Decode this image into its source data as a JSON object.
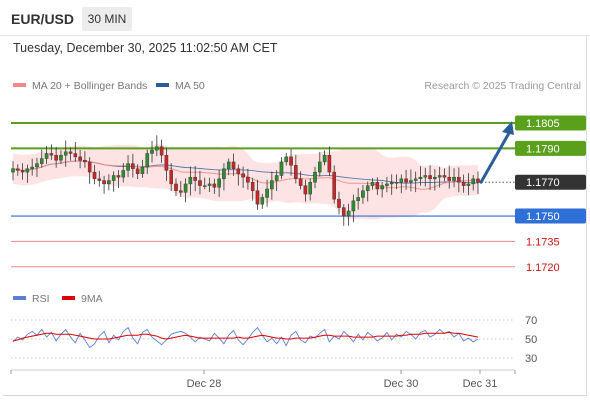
{
  "header": {
    "symbol": "EUR/USD",
    "timeframe": "30 MIN",
    "datetime": "Tuesday, December 30, 2025 11:02:50 AM CET",
    "copyright": "Research © 2025 Trading Central"
  },
  "legend": {
    "ma20_label": "MA 20 + Bollinger Bands",
    "ma20_color": "#f28a8a",
    "ma50_label": "MA 50",
    "ma50_color": "#2c5d9b"
  },
  "rsi_legend": {
    "rsi_label": "RSI",
    "rsi_color": "#5b7fd6",
    "ma9_label": "9MA",
    "ma9_color": "#e00000"
  },
  "chart_data": [
    {
      "type": "candlestick",
      "ylim": [
        1.1711,
        1.1821
      ],
      "x_labels": [
        "Dec 28",
        "Dec 30",
        "Dec 31"
      ],
      "levels": [
        {
          "value": 1.1805,
          "label": "1.1805",
          "kind": "resistance",
          "color": "#5aa01c"
        },
        {
          "value": 1.179,
          "label": "1.1790",
          "kind": "resistance",
          "color": "#5aa01c"
        },
        {
          "value": 1.177,
          "label": "1.1770",
          "kind": "current",
          "color": "#333333"
        },
        {
          "value": 1.175,
          "label": "1.1750",
          "kind": "support",
          "color": "#2f6fd8"
        },
        {
          "value": 1.1735,
          "label": "1.1735",
          "kind": "support",
          "color": "#f08888"
        },
        {
          "value": 1.172,
          "label": "1.1720",
          "kind": "support",
          "color": "#f08888"
        }
      ],
      "closes": [
        1.1778,
        1.1777,
        1.1776,
        1.1778,
        1.1779,
        1.1781,
        1.1784,
        1.1787,
        1.1786,
        1.1783,
        1.1786,
        1.1788,
        1.1787,
        1.1785,
        1.1783,
        1.1782,
        1.1776,
        1.1772,
        1.1771,
        1.1769,
        1.1771,
        1.1774,
        1.1773,
        1.1777,
        1.1781,
        1.1778,
        1.1775,
        1.1779,
        1.1787,
        1.1789,
        1.1791,
        1.1786,
        1.1777,
        1.1769,
        1.1765,
        1.1764,
        1.1769,
        1.1773,
        1.1771,
        1.1768,
        1.1768,
        1.1769,
        1.1767,
        1.1772,
        1.1778,
        1.1782,
        1.1778,
        1.1775,
        1.1773,
        1.177,
        1.1765,
        1.1757,
        1.1761,
        1.1766,
        1.1771,
        1.1774,
        1.1782,
        1.1785,
        1.178,
        1.1772,
        1.1768,
        1.1763,
        1.177,
        1.1776,
        1.1782,
        1.1786,
        1.1776,
        1.176,
        1.1755,
        1.175,
        1.1753,
        1.1759,
        1.1761,
        1.1765,
        1.1768,
        1.177,
        1.1766,
        1.1768,
        1.1769,
        1.177,
        1.177,
        1.1772,
        1.177,
        1.1771,
        1.1772,
        1.1773,
        1.1774,
        1.1772,
        1.1773,
        1.1774,
        1.1773,
        1.1771,
        1.1773,
        1.177,
        1.1768,
        1.1769,
        1.1772,
        1.177
      ],
      "forecast": {
        "from": 1.177,
        "to": 1.1805
      }
    },
    {
      "type": "line",
      "title": "RSI",
      "ylim": [
        20,
        80
      ],
      "y_ticks": [
        70,
        50,
        30
      ],
      "series": [
        {
          "name": "RSI",
          "values": [
            47,
            52,
            49,
            55,
            58,
            54,
            60,
            52,
            57,
            48,
            55,
            60,
            52,
            46,
            56,
            49,
            41,
            45,
            53,
            58,
            46,
            54,
            49,
            58,
            62,
            51,
            45,
            57,
            60,
            52,
            48,
            44,
            49,
            55,
            57,
            58,
            56,
            52,
            47,
            52,
            50,
            48,
            56,
            51,
            45,
            54,
            59,
            49,
            44,
            50,
            57,
            62,
            54,
            47,
            51,
            45,
            52,
            43,
            54,
            58,
            49,
            46,
            53,
            51,
            56,
            60,
            47,
            53,
            50,
            58,
            53,
            47,
            55,
            49,
            57,
            53,
            48,
            51,
            57,
            49,
            55,
            52,
            58,
            55,
            50,
            57,
            59,
            52,
            55,
            60,
            56,
            58,
            52,
            56,
            48,
            51,
            47,
            50
          ]
        },
        {
          "name": "9MA",
          "values": [
            48,
            49,
            51,
            52,
            53,
            54,
            55,
            56,
            56,
            55,
            55,
            55,
            55,
            54,
            53,
            52,
            51,
            50,
            50,
            50,
            50,
            51,
            52,
            53,
            54,
            54,
            54,
            55,
            55,
            54,
            53,
            51,
            50,
            51,
            52,
            53,
            54,
            53,
            52,
            51,
            51,
            51,
            51,
            51,
            51,
            51,
            51,
            52,
            51,
            51,
            52,
            53,
            54,
            53,
            52,
            51,
            51,
            50,
            50,
            51,
            51,
            51,
            51,
            52,
            53,
            54,
            54,
            53,
            53,
            53,
            53,
            52,
            52,
            52,
            52,
            52,
            53,
            53,
            53,
            53,
            53,
            54,
            54,
            55,
            55,
            55,
            56,
            56,
            56,
            56,
            56,
            57,
            56,
            56,
            55,
            54,
            53,
            52
          ]
        }
      ]
    }
  ]
}
